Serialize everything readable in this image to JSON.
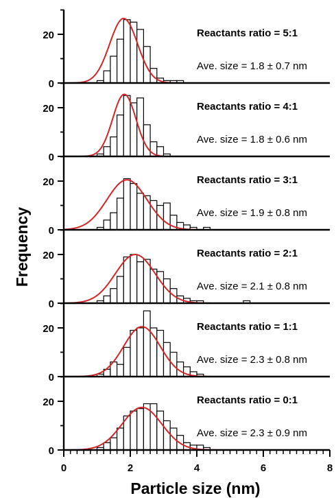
{
  "figure": {
    "xlabel": "Particle size (nm)",
    "ylabel": "Frequency",
    "x_ticks": [
      "0",
      "2",
      "4",
      "6",
      "8"
    ],
    "y_ticks": [
      "0",
      "20"
    ]
  },
  "chart_data": [
    {
      "type": "bar",
      "title": "Reactants ratio = 5:1",
      "annotation": "Ave. size = 1.8 ± 0.7 nm",
      "bin_width": 0.2,
      "bin_starts": [
        1.0,
        1.2,
        1.4,
        1.6,
        1.8,
        2.0,
        2.2,
        2.4,
        2.6,
        2.8,
        3.0,
        3.2,
        3.4,
        3.6
      ],
      "values": [
        1,
        5,
        11,
        18,
        26,
        25,
        22,
        15,
        6,
        2,
        1,
        1,
        1,
        0
      ],
      "fit": {
        "mean": 1.8,
        "sd": 0.42,
        "peak": 26.5
      },
      "xlim": [
        0,
        8
      ],
      "ylim": [
        0,
        30
      ]
    },
    {
      "type": "bar",
      "title": "Reactants ratio = 4:1",
      "annotation": "Ave. size = 1.8 ± 0.6 nm",
      "bin_width": 0.2,
      "bin_starts": [
        1.0,
        1.2,
        1.4,
        1.6,
        1.8,
        2.0,
        2.2,
        2.4,
        2.6,
        2.8,
        3.0,
        3.2,
        3.4,
        3.6
      ],
      "values": [
        1,
        4,
        8,
        17,
        25,
        22,
        24,
        13,
        6,
        4,
        1,
        0,
        0,
        0
      ],
      "fit": {
        "mean": 1.82,
        "sd": 0.35,
        "peak": 25.5
      },
      "xlim": [
        0,
        8
      ],
      "ylim": [
        0,
        30
      ]
    },
    {
      "type": "bar",
      "title": "Reactants ratio = 3:1",
      "annotation": "Ave. size = 1.9 ± 0.8 nm",
      "bin_width": 0.2,
      "bin_starts": [
        1.0,
        1.2,
        1.4,
        1.6,
        1.8,
        2.0,
        2.2,
        2.4,
        2.6,
        2.8,
        3.0,
        3.2,
        3.4,
        3.6,
        3.8,
        4.0,
        4.2
      ],
      "values": [
        1,
        4,
        7,
        13,
        21,
        19,
        15,
        14,
        12,
        10,
        11,
        6,
        3,
        2,
        1,
        0,
        1
      ],
      "fit": {
        "mean": 1.9,
        "sd": 0.6,
        "peak": 20.5
      },
      "xlim": [
        0,
        8
      ],
      "ylim": [
        0,
        30
      ]
    },
    {
      "type": "bar",
      "title": "Reactants ratio = 2:1",
      "annotation": "Ave. size = 2.1 ± 0.8 nm",
      "bin_width": 0.2,
      "bin_starts": [
        1.0,
        1.2,
        1.4,
        1.6,
        1.8,
        2.0,
        2.2,
        2.4,
        2.6,
        2.8,
        3.0,
        3.2,
        3.4,
        3.6,
        3.8,
        4.0,
        4.2,
        5.4
      ],
      "values": [
        1,
        3,
        6,
        11,
        19,
        20,
        17,
        18,
        14,
        13,
        10,
        6,
        3,
        2,
        1,
        1,
        0,
        1
      ],
      "fit": {
        "mean": 2.15,
        "sd": 0.6,
        "peak": 20
      },
      "xlim": [
        0,
        8
      ],
      "ylim": [
        0,
        30
      ]
    },
    {
      "type": "bar",
      "title": "Reactants ratio = 1:1",
      "annotation": "Ave. size = 2.3 ± 0.8 nm",
      "bin_width": 0.2,
      "bin_starts": [
        1.0,
        1.2,
        1.4,
        1.6,
        1.8,
        2.0,
        2.2,
        2.4,
        2.6,
        2.8,
        3.0,
        3.2,
        3.4,
        3.6,
        3.8,
        4.0
      ],
      "values": [
        1,
        3,
        6,
        5,
        12,
        19,
        20,
        27,
        20,
        19,
        14,
        10,
        6,
        4,
        2,
        1
      ],
      "fit": {
        "mean": 2.35,
        "sd": 0.55,
        "peak": 20.5
      },
      "xlim": [
        0,
        8
      ],
      "ylim": [
        0,
        30
      ]
    },
    {
      "type": "bar",
      "title": "Reactants ratio = 0:1",
      "annotation": "Ave. size = 2.3 ± 0.9 nm",
      "bin_width": 0.2,
      "bin_starts": [
        1.0,
        1.2,
        1.4,
        1.6,
        1.8,
        2.0,
        2.2,
        2.4,
        2.6,
        2.8,
        3.0,
        3.2,
        3.4,
        3.6,
        3.8,
        4.0,
        4.2
      ],
      "values": [
        1,
        3,
        5,
        9,
        14,
        16,
        17,
        19,
        19,
        16,
        12,
        9,
        6,
        3,
        2,
        2,
        1
      ],
      "fit": {
        "mean": 2.35,
        "sd": 0.6,
        "peak": 17.5
      },
      "xlim": [
        0,
        8
      ],
      "ylim": [
        0,
        30
      ]
    }
  ]
}
